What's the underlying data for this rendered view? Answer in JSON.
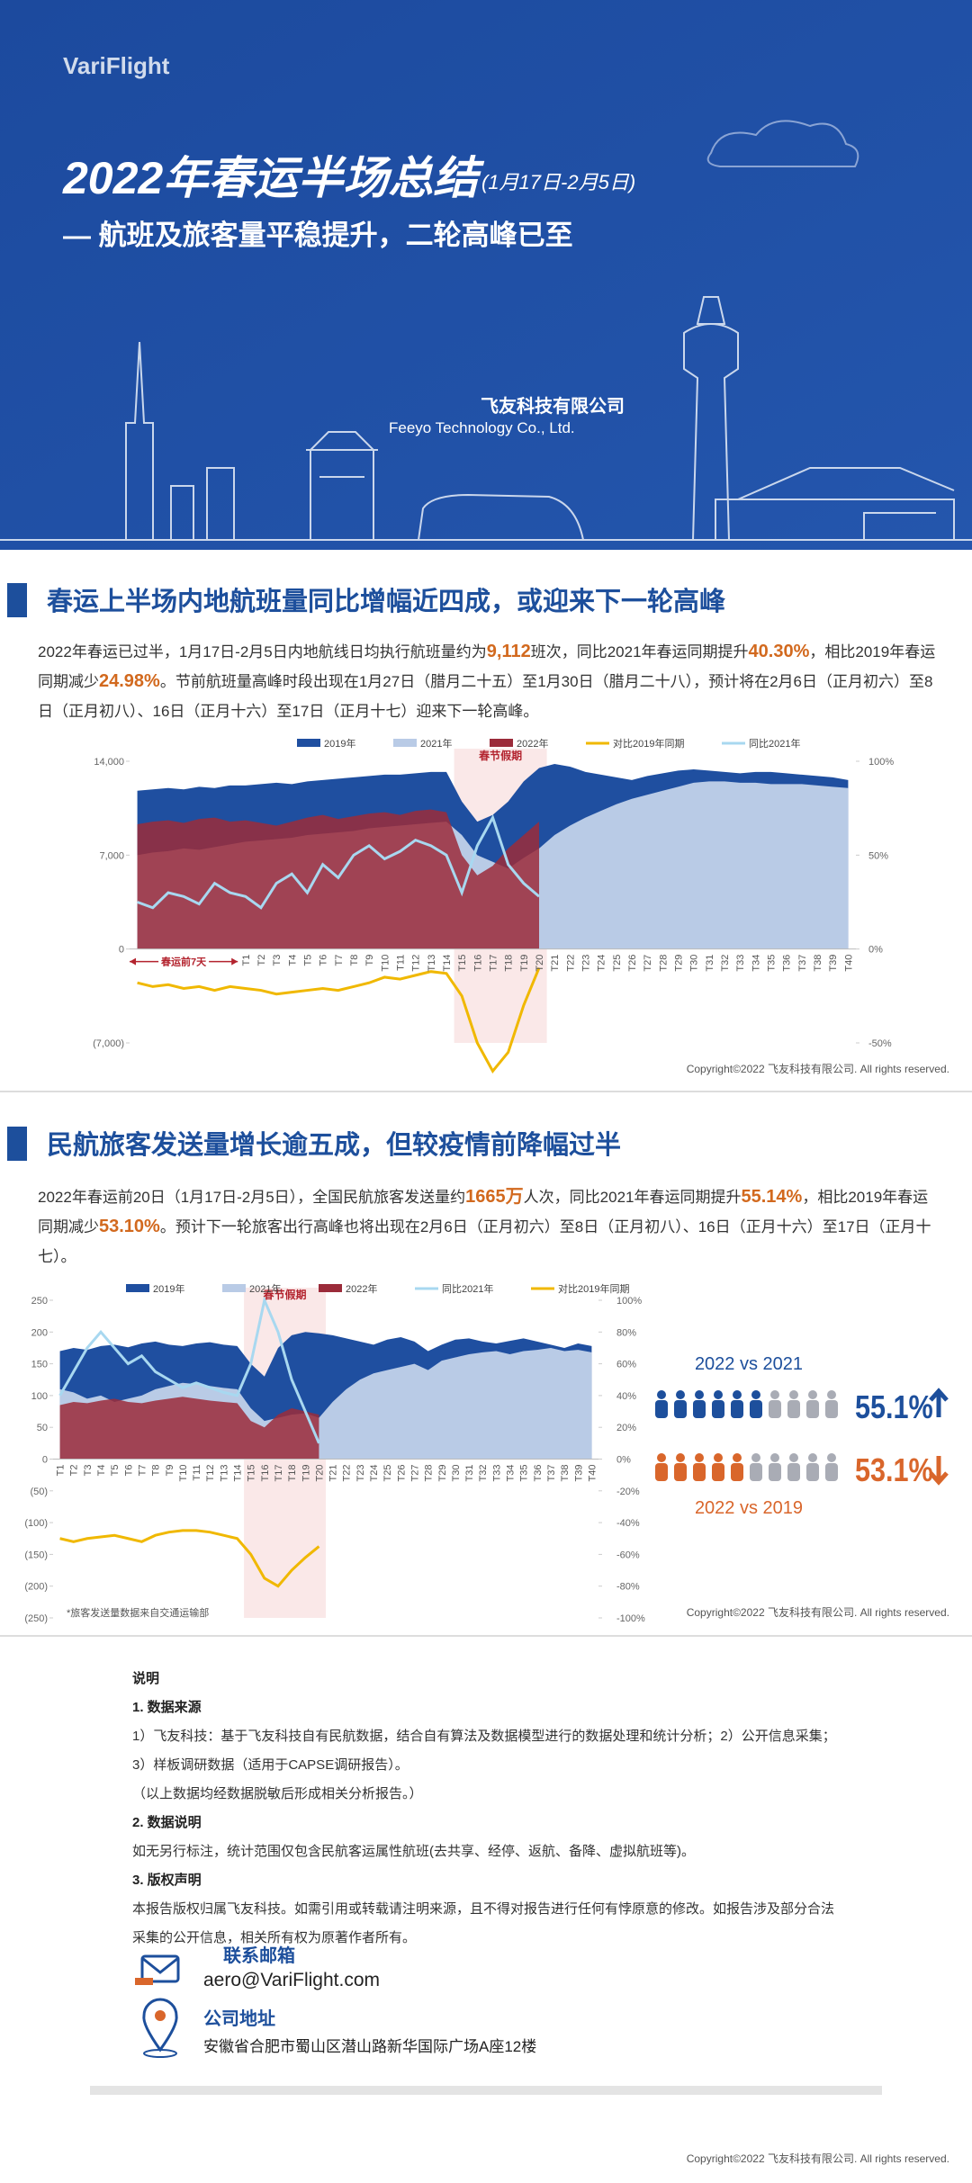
{
  "header": {
    "logo": "VariFlight",
    "title": "2022年春运半场总结",
    "date_range": "(1月17日-2月5日)",
    "subtitle": "— 航班及旅客量平稳提升，二轮高峰已至",
    "company": "飞友科技有限公司",
    "company_en": "Feeyo Technology Co., Ltd."
  },
  "section1": {
    "title": "春运上半场内地航班量同比增幅近四成，或迎来下一轮高峰",
    "paragraph": [
      "2022年春运已过半，1月17日-2月5日内地航线日均执行航班量约为",
      "9,112",
      "班次，同比2021年春运同期提升",
      "40.30%",
      "，相比2019年春运同期减少",
      "24.98%",
      "。节前航班量高峰时段出现在1月27日（腊月二十五）至1月30日（腊月二十八），预计将在2月6日（正月初六）至8日（正月初八）、16日（正月十六）至17日（正月十七）迎来下一轮高峰。"
    ],
    "chart": {
      "type": "area-line",
      "holiday": "春节假期",
      "pre_label": "春运前7天",
      "copyright": "Copyright©2022 飞友科技有限公司. All rights reserved.",
      "categories": [
        null,
        null,
        null,
        null,
        null,
        null,
        null,
        "T1",
        "T2",
        "T3",
        "T4",
        "T5",
        "T6",
        "T7",
        "T8",
        "T9",
        "T10",
        "T11",
        "T12",
        "T13",
        "T14",
        "T15",
        "T16",
        "T17",
        "T18",
        "T19",
        "T20",
        "T21",
        "T22",
        "T23",
        "T24",
        "T25",
        "T26",
        "T27",
        "T28",
        "T29",
        "T30",
        "T31",
        "T32",
        "T33",
        "T34",
        "T35",
        "T36",
        "T37",
        "T38",
        "T39",
        "T40"
      ],
      "ylim": [
        -7000,
        14000
      ],
      "yticks": [
        {
          "value": 14000,
          "label": "14,000"
        },
        {
          "value": 7000,
          "label": "7,000"
        },
        0,
        {
          "value": -7000,
          "label": "(7,000)"
        }
      ],
      "y2lim": [
        -50,
        100
      ],
      "y2ticks": [
        {
          "value": 100,
          "label": "100%"
        },
        {
          "value": 50,
          "label": "50%"
        },
        {
          "value": 0,
          "label": "0%"
        },
        {
          "value": -50,
          "label": "-50%"
        }
      ],
      "series": [
        {
          "name": "2019年",
          "type": "area",
          "color": "#1f4fa0",
          "values": [
            11800,
            11900,
            12000,
            11900,
            12100,
            12000,
            12200,
            12200,
            12300,
            12400,
            12300,
            12500,
            12600,
            12700,
            12800,
            12900,
            13000,
            13000,
            13100,
            13200,
            13200,
            11000,
            9500,
            10000,
            11000,
            12500,
            13500,
            13800,
            13600,
            13200,
            13000,
            12800,
            12600,
            12900,
            13100,
            13300,
            13400,
            13300,
            13200,
            13100,
            13200,
            13200,
            13100,
            13000,
            12900,
            12800,
            12600
          ]
        },
        {
          "name": "2021年",
          "type": "area",
          "color": "#b9cbe6",
          "values": [
            7000,
            7200,
            7300,
            7500,
            7400,
            7600,
            7800,
            8000,
            8100,
            8200,
            8300,
            8500,
            8600,
            8700,
            8800,
            9000,
            9100,
            9200,
            9300,
            9400,
            9500,
            8500,
            7000,
            6500,
            6000,
            6800,
            7500,
            8500,
            9200,
            9800,
            10300,
            10800,
            11200,
            11500,
            11800,
            12100,
            12400,
            12500,
            12500,
            12400,
            12400,
            12300,
            12300,
            12300,
            12200,
            12100,
            12000
          ]
        },
        {
          "name": "2022年",
          "type": "area",
          "color": "#9b2b3a",
          "values": [
            9300,
            9500,
            9600,
            9400,
            9700,
            9800,
            9500,
            9600,
            9400,
            9200,
            9500,
            9800,
            10000,
            9700,
            9900,
            10100,
            10200,
            10000,
            10300,
            10400,
            10200,
            7000,
            5500,
            6200,
            7500,
            8500,
            9500,
            null,
            null,
            null,
            null,
            null,
            null,
            null,
            null,
            null,
            null,
            null,
            null,
            null,
            null,
            null,
            null,
            null,
            null,
            null,
            null
          ]
        },
        {
          "name": "对比2019年同期",
          "type": "line",
          "axis": "y2",
          "color": "#f0b800",
          "values": [
            -18,
            -20,
            -19,
            -21,
            -20,
            -22,
            -20,
            -21,
            -22,
            -24,
            -23,
            -22,
            -21,
            -22,
            -20,
            -18,
            -15,
            -16,
            -14,
            -12,
            -13,
            -25,
            -50,
            -65,
            -55,
            -30,
            -10,
            null,
            null,
            null,
            null,
            null,
            null,
            null,
            null,
            null,
            null,
            null,
            null,
            null,
            null,
            null,
            null,
            null,
            null,
            null,
            null
          ]
        },
        {
          "name": "同比2021年",
          "type": "line",
          "axis": "y2",
          "color": "#a8d8f0",
          "values": [
            25,
            22,
            30,
            28,
            24,
            35,
            30,
            28,
            22,
            35,
            40,
            30,
            45,
            38,
            50,
            55,
            48,
            52,
            58,
            55,
            50,
            30,
            55,
            70,
            45,
            35,
            28,
            null,
            null,
            null,
            null,
            null,
            null,
            null,
            null,
            null,
            null,
            null,
            null,
            null,
            null,
            null,
            null,
            null,
            null,
            null,
            null
          ]
        }
      ]
    }
  },
  "section2": {
    "title": "民航旅客发送量增长逾五成，但较疫情前降幅过半",
    "paragraph": [
      "2022年春运前20日（1月17日-2月5日），全国民航旅客发送量约",
      "1665万",
      "人次，同比2021年春运同期提升",
      "55.14%",
      "，相比2019年春运同期减少",
      "53.10%",
      "。预计下一轮旅客出行高峰也将出现在2月6日（正月初六）至8日（正月初八）、16日（正月十六）至17日（正月十七）。"
    ],
    "chart": {
      "type": "area-line",
      "holiday": "春节假期",
      "footnote": "*旅客发送量数据来自交通运输部",
      "copyright": "Copyright©2022 飞友科技有限公司. All rights reserved.",
      "categories": [
        "T1",
        "T2",
        "T3",
        "T4",
        "T5",
        "T6",
        "T7",
        "T8",
        "T9",
        "T10",
        "T11",
        "T12",
        "T13",
        "T14",
        "T15",
        "T16",
        "T17",
        "T18",
        "T19",
        "T20",
        "T21",
        "T22",
        "T23",
        "T24",
        "T25",
        "T26",
        "T27",
        "T28",
        "T29",
        "T30",
        "T31",
        "T32",
        "T33",
        "T34",
        "T35",
        "T36",
        "T37",
        "T38",
        "T39",
        "T40"
      ],
      "ylim": [
        -250,
        250
      ],
      "yticks": [
        250,
        200,
        150,
        100,
        50,
        0,
        {
          "value": -50,
          "label": "(50)"
        },
        {
          "value": -100,
          "label": "(100)"
        },
        {
          "value": -150,
          "label": "(150)"
        },
        {
          "value": -200,
          "label": "(200)"
        },
        {
          "value": -250,
          "label": "(250)"
        }
      ],
      "y2lim": [
        -100,
        100
      ],
      "y2ticks": [
        {
          "value": 100,
          "label": "100%"
        },
        {
          "value": 80,
          "label": "80%"
        },
        {
          "value": 60,
          "label": "60%"
        },
        {
          "value": 40,
          "label": "40%"
        },
        {
          "value": 20,
          "label": "20%"
        },
        {
          "value": 0,
          "label": "0%"
        },
        {
          "value": -20,
          "label": "-20%"
        },
        {
          "value": -40,
          "label": "-40%"
        },
        {
          "value": -60,
          "label": "-60%"
        },
        {
          "value": -80,
          "label": "-80%"
        },
        {
          "value": -100,
          "label": "-100%"
        }
      ],
      "series": [
        {
          "name": "2019年",
          "type": "area",
          "color": "#1f4fa0",
          "values": [
            170,
            175,
            172,
            178,
            180,
            176,
            182,
            185,
            180,
            178,
            182,
            184,
            180,
            178,
            150,
            130,
            175,
            195,
            200,
            198,
            195,
            190,
            185,
            180,
            188,
            192,
            185,
            170,
            180,
            188,
            190,
            185,
            182,
            186,
            190,
            185,
            180,
            175,
            182,
            178
          ]
        },
        {
          "name": "2021年",
          "type": "area",
          "color": "#b9cbe6",
          "values": [
            110,
            105,
            95,
            100,
            90,
            95,
            100,
            110,
            115,
            120,
            118,
            115,
            112,
            110,
            80,
            60,
            65,
            70,
            72,
            65,
            90,
            110,
            125,
            135,
            140,
            145,
            150,
            140,
            155,
            160,
            165,
            168,
            170,
            165,
            170,
            172,
            175,
            170,
            172,
            168
          ]
        },
        {
          "name": "2022年",
          "type": "area",
          "color": "#9b2b3a",
          "values": [
            85,
            90,
            88,
            92,
            95,
            90,
            88,
            92,
            95,
            98,
            95,
            92,
            90,
            88,
            60,
            50,
            70,
            80,
            75,
            70,
            null,
            null,
            null,
            null,
            null,
            null,
            null,
            null,
            null,
            null,
            null,
            null,
            null,
            null,
            null,
            null,
            null,
            null,
            null,
            null
          ]
        },
        {
          "name": "同比2021年",
          "type": "line",
          "axis": "y2",
          "color": "#a8d8f0",
          "values": [
            40,
            55,
            70,
            80,
            70,
            60,
            65,
            55,
            50,
            45,
            48,
            45,
            42,
            40,
            60,
            100,
            80,
            50,
            30,
            10,
            null,
            null,
            null,
            null,
            null,
            null,
            null,
            null,
            null,
            null,
            null,
            null,
            null,
            null,
            null,
            null,
            null,
            null,
            null,
            null
          ]
        },
        {
          "name": "对比2019年同期",
          "type": "line",
          "axis": "y2",
          "color": "#f0b800",
          "values": [
            -50,
            -52,
            -50,
            -49,
            -48,
            -50,
            -52,
            -48,
            -46,
            -45,
            -45,
            -46,
            -48,
            -50,
            -60,
            -75,
            -80,
            -70,
            -62,
            -55,
            null,
            null,
            null,
            null,
            null,
            null,
            null,
            null,
            null,
            null,
            null,
            null,
            null,
            null,
            null,
            null,
            null,
            null,
            null,
            null
          ]
        }
      ]
    },
    "compare": [
      {
        "label": "2022 vs 2021",
        "value": "55.1%"
      },
      {
        "label": "2022 vs 2019",
        "value": "53.1%"
      }
    ]
  },
  "notes": {
    "title": "说明",
    "sections": [
      {
        "heading": "1. 数据来源",
        "lines": [
          "1）飞友科技：基于飞友科技自有民航数据，结合自有算法及数据模型进行的数据处理和统计分析；2）公开信息采集；",
          "3）样板调研数据（适用于CAPSE调研报告）。",
          "（以上数据均经数据脱敏后形成相关分析报告。）"
        ]
      },
      {
        "heading": "2. 数据说明",
        "lines": [
          "如无另行标注，统计范围仅包含民航客运属性航班(去共享、经停、返航、备降、虚拟航班等)。"
        ]
      },
      {
        "heading": "3. 版权声明",
        "lines": [
          "本报告版权归属飞友科技。如需引用或转载请注明来源，且不得对报告进行任何有悖原意的修改。如报告涉及部分合法",
          "采集的公开信息，相关所有权为原著作者所有。"
        ]
      }
    ]
  },
  "contact": {
    "email_label": "联系邮箱",
    "email": "aero@VariFlight.com",
    "address_label": "公司地址",
    "address": "安徽省合肥市蜀山区潜山路新华国际广场A座12楼"
  },
  "footer": {
    "copyright": "Copyright©2022 飞友科技有限公司. All rights reserved."
  }
}
